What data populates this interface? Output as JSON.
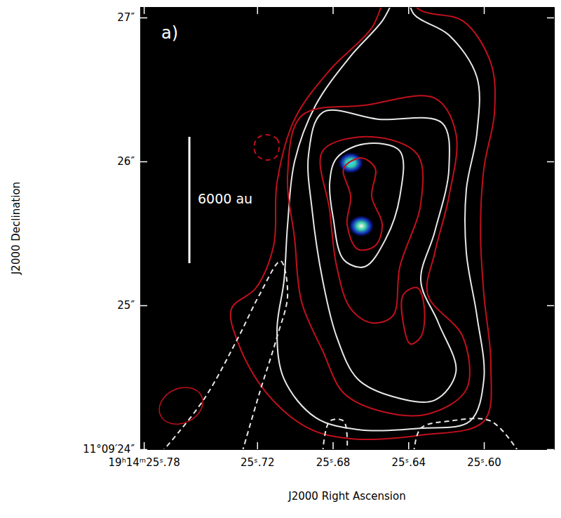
{
  "chart_data": {
    "type": "contour",
    "xlabel": "J2000 Right Ascension",
    "ylabel": "J2000 Declination",
    "panel_label": "a)",
    "xlim": [
      25.7819,
      25.5629
    ],
    "ylim": [
      24,
      27.073
    ],
    "xticks": [
      {
        "value": 25.78,
        "label": "19ʰ14ᵐ25ˢ.78"
      },
      {
        "value": 25.72,
        "label": "25ˢ.72"
      },
      {
        "value": 25.68,
        "label": "25ˢ.68"
      },
      {
        "value": 25.64,
        "label": "25ˢ.64"
      },
      {
        "value": 25.6,
        "label": "25ˢ.60"
      }
    ],
    "yticks": [
      {
        "value": 24,
        "label": "11°09′24″"
      },
      {
        "value": 25,
        "label": "25″"
      },
      {
        "value": 26,
        "label": "26″"
      },
      {
        "value": 27,
        "label": "27″"
      }
    ],
    "sources": {
      "x": [
        25.6705,
        25.6649
      ],
      "y": [
        25.99,
        25.551
      ],
      "colors": [
        "#3ad8ff",
        "#fff8e8"
      ]
    },
    "contours": [
      {
        "color": "#c0101c",
        "line_style": "solid",
        "x": [
          25.6482,
          25.6334,
          25.6111,
          25.5963,
          25.5944,
          25.6,
          25.6018,
          25.6,
          25.5963,
          25.6,
          25.6334,
          25.6705,
          25.6928,
          25.715,
          25.7299,
          25.7336,
          25.7206,
          25.7113,
          25.7095,
          25.7002,
          25.6816,
          25.6594,
          25.6482
        ],
        "y": [
          27.22,
          27.049,
          26.976,
          26.683,
          26.341,
          25.951,
          25.512,
          25.073,
          24.585,
          24.195,
          24.098,
          24.073,
          24.146,
          24.39,
          24.732,
          24.976,
          25.122,
          25.415,
          25.854,
          26.293,
          26.634,
          26.927,
          27.22
        ]
      },
      {
        "color": "#e8e8e8",
        "line_style": "solid",
        "x": [
          25.6427,
          25.6371,
          25.6185,
          25.6037,
          25.6037,
          25.6093,
          25.6093,
          25.6037,
          25.6,
          25.6074,
          25.6334,
          25.6668,
          25.6891,
          25.7058,
          25.7095,
          25.7058,
          25.7039,
          25.7002,
          25.6891,
          25.6705,
          25.6538,
          25.6427
        ],
        "y": [
          27.22,
          27.024,
          26.878,
          26.585,
          26.195,
          25.805,
          25.366,
          24.927,
          24.488,
          24.195,
          24.146,
          24.137,
          24.22,
          24.488,
          24.829,
          25.171,
          25.561,
          26.0,
          26.39,
          26.732,
          26.976,
          27.22
        ]
      },
      {
        "color": "#c0101c",
        "line_style": "solid",
        "x": [
          25.6965,
          25.6631,
          25.626,
          25.6148,
          25.6185,
          25.626,
          25.6297,
          25.6111,
          25.6093,
          25.6297,
          25.6557,
          25.6742,
          25.6853,
          25.6965,
          25.7002,
          25.7039,
          25.6965
        ],
        "y": [
          26.317,
          26.39,
          26.439,
          26.195,
          25.756,
          25.366,
          25.073,
          24.78,
          24.415,
          24.244,
          24.268,
          24.39,
          24.683,
          25.024,
          25.463,
          25.902,
          26.317
        ]
      },
      {
        "color": "#e8e8e8",
        "line_style": "solid",
        "x": [
          25.6853,
          25.6557,
          25.6222,
          25.6185,
          25.626,
          25.6334,
          25.6241,
          25.6148,
          25.626,
          25.6482,
          25.6668,
          25.6779,
          25.6853,
          25.6909,
          25.6928,
          25.6853
        ],
        "y": [
          26.341,
          26.293,
          26.268,
          25.951,
          25.512,
          25.171,
          24.878,
          24.537,
          24.341,
          24.366,
          24.488,
          24.78,
          25.171,
          25.659,
          26.049,
          26.341
        ]
      },
      {
        "color": "#c0101c",
        "line_style": "solid",
        "x": [
          25.6853,
          25.6594,
          25.6352,
          25.6334,
          25.6445,
          25.6482,
          25.6594,
          25.6705,
          25.6779,
          25.6816,
          25.6853
        ],
        "y": [
          26.073,
          26.171,
          26.049,
          25.707,
          25.268,
          24.927,
          24.878,
          24.976,
          25.268,
          25.659,
          26.073
        ]
      },
      {
        "color": "#e8e8e8",
        "line_style": "solid",
        "x": [
          25.6779,
          25.6631,
          25.6445,
          25.6445,
          25.6519,
          25.6631,
          25.6742,
          25.6798,
          25.6816,
          25.6779
        ],
        "y": [
          26.024,
          26.122,
          26.073,
          25.756,
          25.463,
          25.268,
          25.317,
          25.61,
          25.854,
          26.024
        ]
      },
      {
        "color": "#c0101c",
        "line_style": "solid",
        "x": [
          25.6742,
          25.6649,
          25.6575,
          25.6594,
          25.6538,
          25.6575,
          25.6668,
          25.6724,
          25.6705,
          25.6742
        ],
        "y": [
          25.951,
          26.024,
          25.951,
          25.756,
          25.561,
          25.415,
          25.39,
          25.561,
          25.756,
          25.951
        ]
      },
      {
        "color": "#c0101c",
        "line_style": "solid",
        "x": [
          25.6427,
          25.6352,
          25.6315,
          25.6334,
          25.639,
          25.6427,
          25.6427
        ],
        "y": [
          25.073,
          25.122,
          24.976,
          24.78,
          24.732,
          24.878,
          25.073
        ]
      },
      {
        "color": "#c0101c",
        "line_style": "dashed",
        "x": [
          25.715,
          25.7095,
          25.7084,
          25.7102,
          25.715,
          25.7199,
          25.7217,
          25.7199,
          25.715
        ],
        "y": [
          26.185,
          26.156,
          26.098,
          26.029,
          26.01,
          26.039,
          26.098,
          26.161,
          26.185
        ]
      },
      {
        "color": "#e8e8e8",
        "line_style": "dashed",
        "x": [
          25.7707,
          25.7485,
          25.7299,
          25.7188,
          25.7076,
          25.7039,
          25.7095,
          25.7188,
          25.728
        ],
        "y": [
          23.976,
          24.341,
          24.78,
          25.073,
          25.307,
          25.073,
          24.78,
          24.39,
          23.976
        ]
      },
      {
        "color": "#e8e8e8",
        "line_style": "dashed",
        "x": [
          25.6853,
          25.6816,
          25.6742,
          25.6724
        ],
        "y": [
          23.976,
          24.195,
          24.195,
          23.976
        ]
      },
      {
        "color": "#e8e8e8",
        "line_style": "dashed",
        "x": [
          25.6371,
          25.6334,
          25.6185,
          25.5963,
          25.5814
        ],
        "y": [
          23.976,
          24.146,
          24.195,
          24.195,
          23.976
        ]
      }
    ],
    "beam": {
      "x": 25.7603,
      "y": 24.302,
      "major": 0.3,
      "minor": 0.24,
      "color": "#c0101c"
    },
    "scale_bar": {
      "label": "6000 au",
      "x": 25.7559,
      "y": [
        25.293,
        26.171
      ]
    }
  }
}
